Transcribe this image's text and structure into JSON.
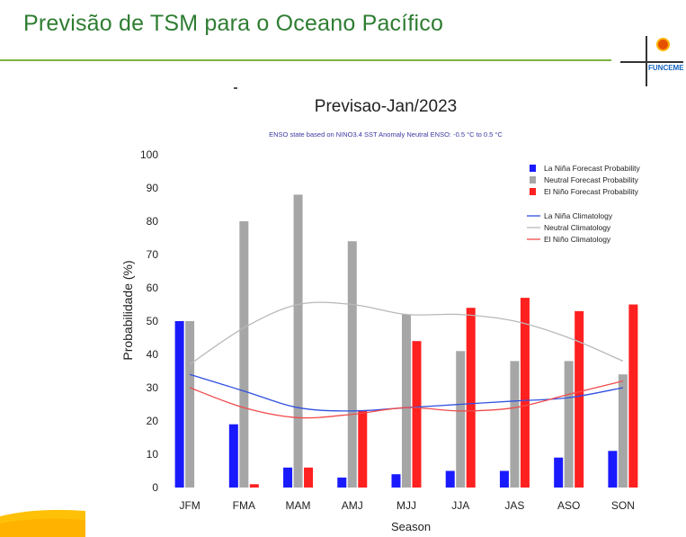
{
  "slide": {
    "title": "Previsão de TSM para o Oceano Pacífico",
    "logo_text": "FUNCEME"
  },
  "colors": {
    "title_green": "#2e7d32",
    "rule_green": "#7cb342",
    "la_nina": "#1a1aff",
    "neutral": "#a6a6a6",
    "el_nino": "#ff2020"
  },
  "chart_data": {
    "type": "bar",
    "title": "Previsao-Jan/2023",
    "subtitle": "ENSO state based on NINO3.4 SST Anomaly Neutral ENSO: -0.5 °C to 0.5 °C",
    "xlabel": "Season",
    "ylabel": "Probabilidade (%)",
    "ylim": [
      0,
      100
    ],
    "yticks": [
      0,
      10,
      20,
      30,
      40,
      50,
      60,
      70,
      80,
      90,
      100
    ],
    "categories": [
      "JFM",
      "FMA",
      "MAM",
      "AMJ",
      "MJJ",
      "JJA",
      "JAS",
      "ASO",
      "SON"
    ],
    "series": [
      {
        "name": "La Niña Forecast Probability",
        "kind": "bar",
        "color": "#1a1aff",
        "values": [
          50,
          19,
          6,
          3,
          4,
          5,
          5,
          9,
          11
        ]
      },
      {
        "name": "Neutral Forecast Probability",
        "kind": "bar",
        "color": "#a6a6a6",
        "values": [
          50,
          80,
          88,
          74,
          52,
          41,
          38,
          38,
          34
        ]
      },
      {
        "name": "El Niño Forecast Probability",
        "kind": "bar",
        "color": "#ff2020",
        "values": [
          0,
          1,
          6,
          23,
          44,
          54,
          57,
          53,
          55
        ]
      },
      {
        "name": "La Niña Climatology",
        "kind": "line",
        "color": "#3050e0",
        "values": [
          34,
          29,
          24,
          23,
          24,
          25,
          26,
          27,
          30
        ]
      },
      {
        "name": "Neutral Climatology",
        "kind": "line",
        "color": "#b8b8b8",
        "values": [
          37,
          48,
          55,
          55,
          52,
          52,
          50,
          45,
          38
        ]
      },
      {
        "name": "El Niño Climatology",
        "kind": "line",
        "color": "#f04a4a",
        "values": [
          30,
          24,
          21,
          22,
          24,
          23,
          24,
          28,
          32
        ]
      }
    ],
    "legend_position": "top-right",
    "grid": false
  }
}
